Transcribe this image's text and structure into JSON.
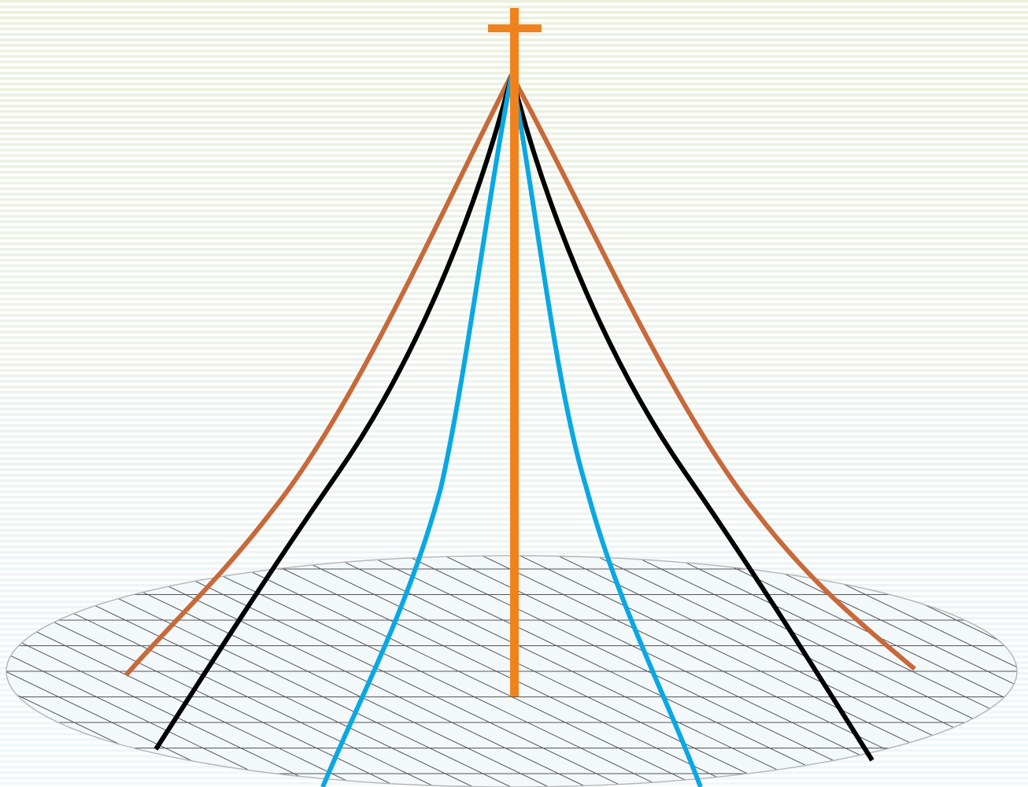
{
  "diagram": {
    "colors": {
      "background_stripe_top": "#e7eed6",
      "background_stripe_bottom": "#dfeef5",
      "background_base": "#ffffff",
      "mast": "#f0821e",
      "outer_curves": "#c8693a",
      "middle_curves": "#000000",
      "inner_curves": "#0aa8e2",
      "ellipse_outline": "#b4b4b4",
      "grid_lines": "#555555"
    },
    "elements": [
      "sky-background",
      "ground-ellipse",
      "ground-grid",
      "center-mast",
      "mast-crossbar",
      "outer-curves",
      "middle-curves",
      "inner-curves"
    ]
  }
}
